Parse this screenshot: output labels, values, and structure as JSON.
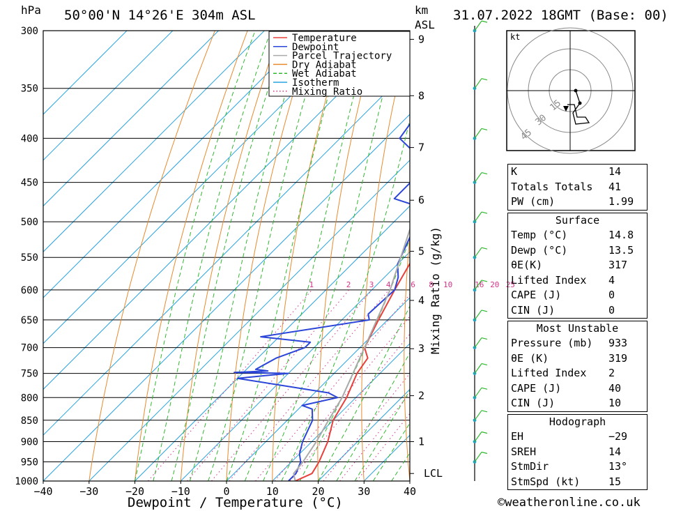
{
  "header": {
    "location": "50°00'N  14°26'E  304m  ASL",
    "datetime": "31.07.2022  18GMT  (Base: 00)",
    "pressure_unit": "hPa",
    "height_unit_km": "km",
    "height_unit_asl": "ASL"
  },
  "chart_data": {
    "type": "line",
    "xlabel": "Dewpoint / Temperature (°C)",
    "ylabel": "hPa",
    "y2label": "Mixing Ratio (g/kg)",
    "xlim": [
      -40,
      40
    ],
    "ylim": [
      1000,
      300
    ],
    "yscale": "log",
    "x_ticks": [
      "−40",
      "−30",
      "−20",
      "−10",
      "0",
      "10",
      "20",
      "30",
      "40"
    ],
    "x_tick_values": [
      -40,
      -30,
      -20,
      -10,
      0,
      10,
      20,
      30,
      40
    ],
    "pressure_levels": [
      300,
      350,
      400,
      450,
      500,
      550,
      600,
      650,
      700,
      750,
      800,
      850,
      900,
      950,
      1000
    ],
    "height_ticks": [
      {
        "label": "9",
        "p": 307
      },
      {
        "label": "8",
        "p": 357
      },
      {
        "label": "7",
        "p": 410
      },
      {
        "label": "6",
        "p": 472
      },
      {
        "label": "5",
        "p": 541
      },
      {
        "label": "4",
        "p": 617
      },
      {
        "label": "3",
        "p": 702
      },
      {
        "label": "2",
        "p": 796
      },
      {
        "label": "1",
        "p": 900
      },
      {
        "label": "LCL",
        "p": 980
      }
    ],
    "mixing_ratio_labels": [
      "1",
      "2",
      "3",
      "4",
      "6",
      "8",
      "10",
      "16",
      "20",
      "25"
    ],
    "mixing_ratio_values": [
      1,
      2,
      3,
      4,
      6,
      8,
      10,
      16,
      20,
      25
    ],
    "mixing_ratio_label_p": 600,
    "skew": 1,
    "legend": {
      "position": "top-right",
      "items": [
        {
          "name": "Temperature",
          "color": "#e8403a",
          "style": "solid"
        },
        {
          "name": "Dewpoint",
          "color": "#2a45d8",
          "style": "solid"
        },
        {
          "name": "Parcel Trajectory",
          "color": "#aaaaaa",
          "style": "solid"
        },
        {
          "name": "Dry Adiabat",
          "color": "#e88a2e",
          "style": "solid"
        },
        {
          "name": "Wet Adiabat",
          "color": "#2fb82f",
          "style": "dashed"
        },
        {
          "name": "Isotherm",
          "color": "#2aa3e0",
          "style": "solid"
        },
        {
          "name": "Mixing Ratio",
          "color": "#d4338a",
          "style": "dotted"
        }
      ]
    },
    "series": [
      {
        "name": "Temperature",
        "color": "#e8403a",
        "points": [
          [
            1000,
            15
          ],
          [
            980,
            17
          ],
          [
            950,
            16
          ],
          [
            900,
            13.5
          ],
          [
            850,
            10
          ],
          [
            800,
            8
          ],
          [
            750,
            5
          ],
          [
            720,
            4
          ],
          [
            700,
            1
          ],
          [
            650,
            -2
          ],
          [
            600,
            -5
          ],
          [
            550,
            -8
          ],
          [
            500,
            -11
          ],
          [
            470,
            -14
          ],
          [
            450,
            -16
          ],
          [
            400,
            -22
          ],
          [
            375,
            -25
          ],
          [
            350,
            -30
          ],
          [
            320,
            -35
          ],
          [
            300,
            -38
          ]
        ]
      },
      {
        "name": "Dewpoint",
        "color": "#2a45d8",
        "points": [
          [
            1000,
            13.5
          ],
          [
            980,
            13.5
          ],
          [
            950,
            12
          ],
          [
            930,
            10
          ],
          [
            900,
            8
          ],
          [
            850,
            5.5
          ],
          [
            825,
            3
          ],
          [
            817,
            0
          ],
          [
            800,
            6
          ],
          [
            790,
            3
          ],
          [
            760,
            -20
          ],
          [
            750,
            -10
          ],
          [
            748,
            -22
          ],
          [
            745,
            -15
          ],
          [
            742,
            -18
          ],
          [
            720,
            -16
          ],
          [
            700,
            -12
          ],
          [
            690,
            -12
          ],
          [
            680,
            -24
          ],
          [
            650,
            -4
          ],
          [
            640,
            -5.5
          ],
          [
            600,
            -5
          ],
          [
            580,
            -7
          ],
          [
            560,
            -10
          ],
          [
            500,
            -15
          ],
          [
            480,
            -18
          ],
          [
            470,
            -25
          ],
          [
            430,
            -25
          ],
          [
            400,
            -37
          ],
          [
            350,
            -40
          ],
          [
            330,
            -42
          ],
          [
            320,
            -43
          ],
          [
            310,
            -50
          ],
          [
            305,
            -52
          ],
          [
            300,
            -53
          ]
        ]
      },
      {
        "name": "Parcel Trajectory",
        "color": "#aaaaaa",
        "points": [
          [
            1000,
            15
          ],
          [
            980,
            13
          ],
          [
            950,
            12.5
          ],
          [
            900,
            11
          ],
          [
            850,
            9
          ],
          [
            800,
            7
          ],
          [
            700,
            1
          ],
          [
            600,
            -6
          ],
          [
            500,
            -16
          ],
          [
            400,
            -29
          ],
          [
            300,
            -46
          ]
        ]
      }
    ]
  },
  "hodograph": {
    "unit": "kt",
    "rings": [
      "15",
      "30",
      "45"
    ]
  },
  "table1": [
    {
      "key": "K",
      "value": "14"
    },
    {
      "key": "Totals Totals",
      "value": "41"
    },
    {
      "key": "PW (cm)",
      "value": "1.99"
    }
  ],
  "surface": {
    "title": "Surface",
    "rows": [
      {
        "key": "Temp (°C)",
        "value": "14.8"
      },
      {
        "key": "Dewp (°C)",
        "value": "13.5"
      },
      {
        "key": "θE(K)",
        "value": "317"
      },
      {
        "key": "Lifted Index",
        "value": "4"
      },
      {
        "key": "CAPE (J)",
        "value": "0"
      },
      {
        "key": "CIN (J)",
        "value": "0"
      }
    ]
  },
  "most_unstable": {
    "title": "Most Unstable",
    "rows": [
      {
        "key": "Pressure (mb)",
        "value": "933"
      },
      {
        "key": "θE (K)",
        "value": "319"
      },
      {
        "key": "Lifted Index",
        "value": "2"
      },
      {
        "key": "CAPE (J)",
        "value": "40"
      },
      {
        "key": "CIN (J)",
        "value": "10"
      }
    ]
  },
  "hodograph_table": {
    "title": "Hodograph",
    "rows": [
      {
        "key": "EH",
        "value": "−29"
      },
      {
        "key": "SREH",
        "value": "14"
      },
      {
        "key": "StmDir",
        "value": "13°"
      },
      {
        "key": "StmSpd (kt)",
        "value": "15"
      }
    ]
  },
  "footer": {
    "copyright": "©weatheronline.co.uk"
  },
  "colors": {
    "temperature": "#e8403a",
    "dewpoint": "#2a45d8",
    "parcel": "#aaaaaa",
    "dry_adiabat": "#e88a2e",
    "wet_adiabat": "#2fb82f",
    "isotherm": "#2aa3e0",
    "mixing_ratio": "#d4338a",
    "wind": "#2fb82f"
  }
}
